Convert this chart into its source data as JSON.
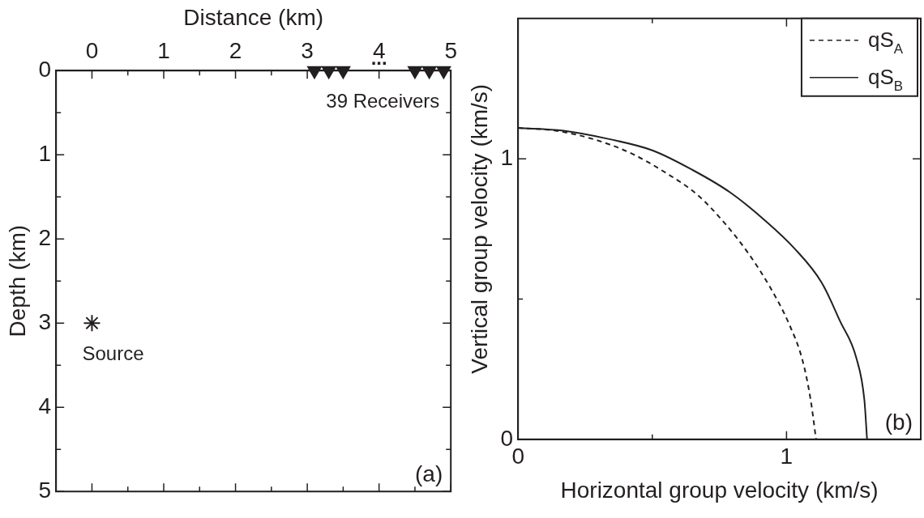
{
  "chart_data": [
    {
      "type": "scatter",
      "xlabel": "Distance (km)",
      "ylabel": "Depth (km)",
      "xlim": [
        -0.5,
        5
      ],
      "ylim": [
        5,
        0
      ],
      "xticks": [
        0,
        {
          "value": 0.5,
          "label": null
        },
        1,
        {
          "value": 1.5,
          "label": null
        },
        2,
        {
          "value": 2.5,
          "label": null
        },
        3,
        {
          "value": 3.5,
          "label": null
        },
        4,
        {
          "value": 4.5,
          "label": null
        },
        5
      ],
      "yticks": [
        0,
        {
          "value": 0.5,
          "label": null
        },
        1,
        {
          "value": 1.5,
          "label": null
        },
        2,
        {
          "value": 2.5,
          "label": null
        },
        3,
        {
          "value": 3.5,
          "label": null
        },
        4,
        {
          "value": 4.5,
          "label": null
        },
        5
      ],
      "series": [
        {
          "name": "Source",
          "color": "#231f20",
          "marker": "cross",
          "x": [
            0
          ],
          "values": [
            3
          ]
        },
        {
          "name": "39 Receivers",
          "color": "#231f20",
          "marker": "triangle",
          "x": [
            3.1,
            3.3,
            3.5,
            4.5,
            4.7,
            4.9
          ],
          "values": [
            0,
            0,
            0,
            0,
            0,
            0
          ]
        }
      ],
      "annotations": [
        "(a)",
        "..."
      ]
    },
    {
      "type": "line",
      "xlabel": "Horizontal group velocity (km/s)",
      "ylabel": "Vertical group velocity (km/s)",
      "xlim": [
        0,
        1.5
      ],
      "ylim": [
        0,
        1.5
      ],
      "xticks": [
        0,
        {
          "value": 0.5,
          "label": null
        },
        1
      ],
      "yticks": [
        0,
        {
          "value": 0.5,
          "label": null
        },
        1
      ],
      "legend": "top right",
      "x": [
        0,
        0.14,
        0.28,
        0.42,
        0.55,
        0.67,
        0.77,
        0.86,
        0.94,
        1.01,
        1.06,
        1.09,
        1.11
      ],
      "series": [
        {
          "name": "qS$_{A}$",
          "color": "#231f20",
          "line_style": "dashed",
          "values": [
            1.11,
            1.1,
            1.07,
            1.02,
            0.95,
            0.87,
            0.77,
            0.66,
            0.54,
            0.41,
            0.28,
            0.14,
            0
          ]
        },
        {
          "name": "qS$_{B}$",
          "color": "#231f20",
          "line_style": "solid",
          "x": [
            0,
            0.17,
            0.34,
            0.5,
            0.65,
            0.79,
            0.92,
            1.03,
            1.13,
            1.2,
            1.26,
            1.29,
            1.3
          ],
          "values": [
            1.11,
            1.1,
            1.07,
            1.03,
            0.96,
            0.88,
            0.78,
            0.68,
            0.56,
            0.42,
            0.29,
            0.14,
            0
          ]
        }
      ],
      "annotations": [
        "(b)"
      ]
    }
  ]
}
